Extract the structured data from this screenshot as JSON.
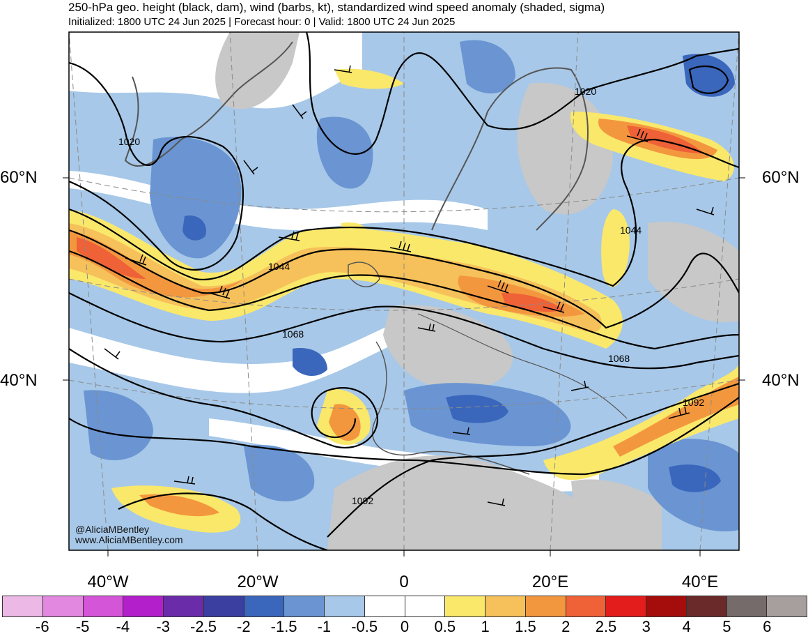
{
  "header": {
    "title": "250-hPa geo. height (black, dam), wind (barbs, kt), standardized wind speed anomaly (shaded, sigma)",
    "subtitle": "Initialized: 1800 UTC 24 Jun 2025 | Forecast hour: 0 | Valid: 1800 UTC 24 Jun 2025"
  },
  "map": {
    "latitude_labels": [
      "60°N",
      "40°N"
    ],
    "longitude_labels": [
      "40°W",
      "20°W",
      "0",
      "20°E",
      "40°E"
    ],
    "contour_labels": [
      "1020",
      "1020",
      "1044",
      "1044",
      "1068",
      "1068",
      "1092",
      "1092"
    ],
    "credit": [
      "@AliciaMBentley",
      "www.AliciaMBentley.com"
    ]
  },
  "colorbar": {
    "colors": [
      "#ecb8e6",
      "#e388e0",
      "#d555d8",
      "#b21fcb",
      "#6a2ca9",
      "#3a3fa0",
      "#3a67bc",
      "#6a95d2",
      "#a7c8e8",
      "#ffffff",
      "#ffffff",
      "#fae86b",
      "#f6c15a",
      "#f3973f",
      "#ef6137",
      "#e31c1c",
      "#a50d0d",
      "#6b2a2a",
      "#756b6b",
      "#a79e9e"
    ],
    "tick_labels": [
      "-6",
      "-5",
      "-4",
      "-3",
      "-2.5",
      "-2",
      "-1.5",
      "-1",
      "-0.5",
      "0",
      "0.5",
      "1",
      "1.5",
      "2",
      "2.5",
      "3",
      "4",
      "5",
      "6"
    ]
  }
}
